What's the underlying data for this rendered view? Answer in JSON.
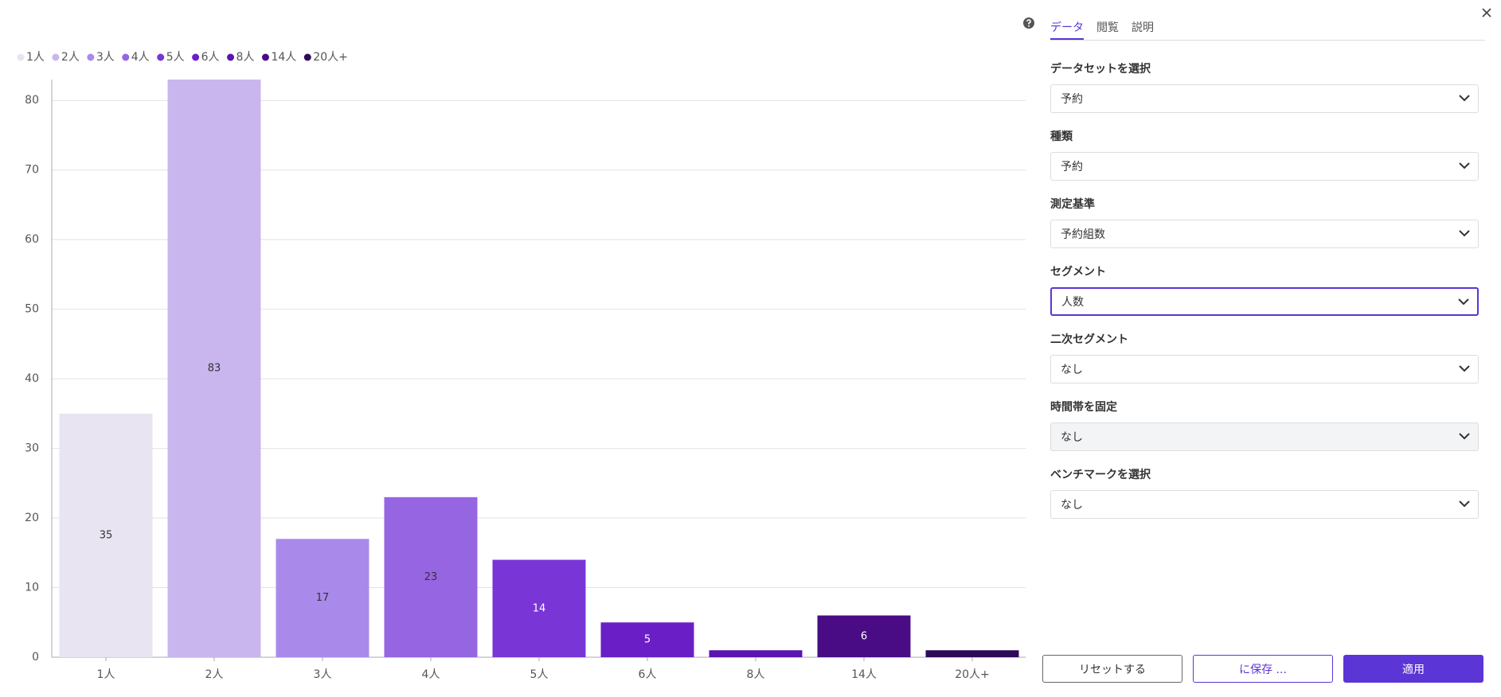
{
  "chart_data": {
    "type": "bar",
    "categories": [
      "1人",
      "2人",
      "3人",
      "4人",
      "5人",
      "6人",
      "8人",
      "14人",
      "20人+"
    ],
    "values": [
      35,
      83,
      17,
      23,
      14,
      5,
      1,
      6,
      1
    ],
    "colors": [
      "#e8e4f2",
      "#c9b6ef",
      "#a98aea",
      "#9565e2",
      "#7a35d6",
      "#6a1fc6",
      "#5a14b0",
      "#4a0c85",
      "#2e0a5a"
    ],
    "ylim": [
      0,
      83
    ],
    "yticks": [
      0,
      10,
      20,
      30,
      40,
      50,
      60,
      70,
      80
    ],
    "grid": true,
    "legend": "top-left"
  },
  "panel": {
    "tabs": [
      "データ",
      "閲覧",
      "説明"
    ],
    "fields": [
      {
        "label": "データセットを選択",
        "value": "予約"
      },
      {
        "label": "種類",
        "value": "予約"
      },
      {
        "label": "測定基準",
        "value": "予約組数"
      },
      {
        "label": "セグメント",
        "value": "人数"
      },
      {
        "label": "二次セグメント",
        "value": "なし"
      },
      {
        "label": "時間帯を固定",
        "value": "なし"
      },
      {
        "label": "ベンチマークを選択",
        "value": "なし"
      }
    ],
    "buttons": [
      "リセットする",
      "に保存 ...",
      "適用"
    ]
  }
}
